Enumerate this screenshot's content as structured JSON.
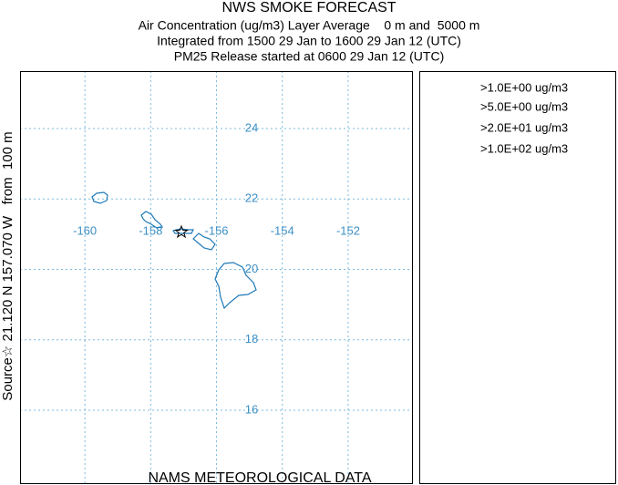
{
  "header": {
    "title": "NWS SMOKE FORECAST",
    "lines": [
      "Air Concentration (ug/m3) Layer Average    0 m and  5000 m",
      "Integrated from 1500 29 Jan to 1600 29 Jan 12 (UTC)",
      "PM25 Release started at 0600 29 Jan 12 (UTC)"
    ]
  },
  "map": {
    "xlim": [
      -161.97,
      -150.06
    ],
    "ylim": [
      13.93,
      25.63
    ],
    "xticks": [
      -160,
      -158,
      -156,
      -154,
      -152
    ],
    "yticks": [
      16,
      18,
      20,
      22,
      24
    ],
    "grid": true,
    "source_label": "Source☆ 21.120 N 157.070 W   from  100 m"
  },
  "legend": {
    "entries": [
      ">1.0E+00 ug/m3",
      ">5.0E+00 ug/m3",
      ">2.0E+01 ug/m3",
      ">1.0E+02 ug/m3"
    ]
  },
  "footer": "NAMS METEOROLOGICAL DATA"
}
